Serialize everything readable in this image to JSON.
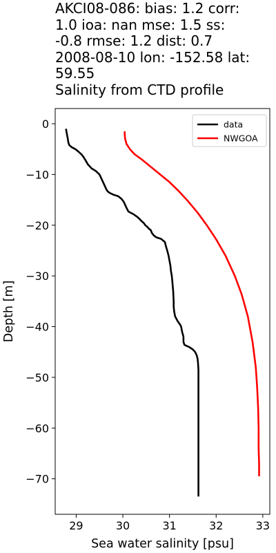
{
  "title_lines": [
    "AKCI08-086: bias: 1.2  corr:",
    "1.0  ioa: nan  mse: 1.5  ss:",
    "-0.8  rmse: 1.2  dist: 0.7",
    "2008-08-10 lon: -152.58 lat:",
    "59.55",
    "Salinity from CTD profile"
  ],
  "chart_data": {
    "type": "line",
    "title": "AKCI08-086: bias: 1.2  corr: 1.0  ioa: nan  mse: 1.5  ss: -0.8  rmse: 1.2  dist: 0.7 2008-08-10 lon: -152.58 lat: 59.55 Salinity from CTD profile",
    "xlabel": "Sea water salinity [psu]",
    "ylabel": "Depth [m]",
    "xlim": [
      28.55,
      33.15
    ],
    "ylim": [
      -77,
      3
    ],
    "xticks": [
      29,
      30,
      31,
      32,
      33
    ],
    "yticks": [
      0,
      -10,
      -20,
      -30,
      -40,
      -50,
      -60,
      -70
    ],
    "grid": false,
    "legend_position": "top-right",
    "series": [
      {
        "name": "data",
        "color": "#000000",
        "x": [
          28.78,
          28.8,
          28.82,
          28.83,
          28.85,
          28.9,
          28.98,
          29.05,
          29.12,
          29.16,
          29.2,
          29.25,
          29.33,
          29.42,
          29.5,
          29.55,
          29.6,
          29.65,
          29.68,
          29.73,
          29.8,
          29.9,
          29.97,
          30.02,
          30.05,
          30.08,
          30.12,
          30.22,
          30.3,
          30.35,
          30.4,
          30.45,
          30.48,
          30.52,
          30.55,
          30.6,
          30.62,
          30.66,
          30.72,
          30.82,
          30.9,
          30.92,
          30.95,
          30.98,
          31.0,
          31.02,
          31.03,
          31.05,
          31.06,
          31.08,
          31.09,
          31.09,
          31.1,
          31.12,
          31.18,
          31.22,
          31.25,
          31.27,
          31.3,
          31.3,
          31.32,
          31.42,
          31.5,
          31.55,
          31.58,
          31.6,
          31.61,
          31.62,
          31.62,
          31.62,
          31.62,
          31.62,
          31.62
        ],
        "y": [
          -1,
          -2,
          -3,
          -3.6,
          -4.2,
          -4.6,
          -5.0,
          -5.5,
          -6.1,
          -6.6,
          -7.2,
          -8.0,
          -8.8,
          -9.3,
          -10.0,
          -11.0,
          -12.0,
          -13.0,
          -13.4,
          -13.7,
          -14.0,
          -14.3,
          -14.8,
          -15.4,
          -16.0,
          -16.6,
          -17.3,
          -17.8,
          -18.3,
          -18.7,
          -19.2,
          -19.6,
          -20.0,
          -20.3,
          -20.6,
          -21.0,
          -21.5,
          -22.0,
          -22.4,
          -22.7,
          -23.3,
          -24.0,
          -25.0,
          -26.0,
          -27.0,
          -28.0,
          -29.0,
          -30.0,
          -31.0,
          -33.0,
          -35.0,
          -36.0,
          -37.0,
          -38.0,
          -39.0,
          -39.5,
          -40.0,
          -41.0,
          -42.0,
          -43.0,
          -43.6,
          -44.0,
          -44.5,
          -45.0,
          -45.6,
          -46.2,
          -47.0,
          -48.5,
          -50.0,
          -55.0,
          -60.0,
          -65.0,
          -73.5
        ]
      },
      {
        "name": "NWGOA",
        "color": "#ff0000",
        "x": [
          30.04,
          30.04,
          30.05,
          30.08,
          30.15,
          30.25,
          30.4,
          30.6,
          30.8,
          31.0,
          31.2,
          31.4,
          31.6,
          31.8,
          32.0,
          32.2,
          32.4,
          32.55,
          32.68,
          32.78,
          32.85,
          32.88,
          32.9,
          32.91,
          32.91,
          32.92,
          32.92
        ],
        "y": [
          -1.5,
          -2,
          -3,
          -4,
          -5,
          -6,
          -7,
          -8.5,
          -10,
          -11.5,
          -13.3,
          -15.3,
          -17.5,
          -20,
          -22.8,
          -26,
          -30,
          -33.7,
          -38,
          -43,
          -48,
          -52,
          -56,
          -60,
          -64,
          -67,
          -69.5
        ]
      }
    ]
  }
}
